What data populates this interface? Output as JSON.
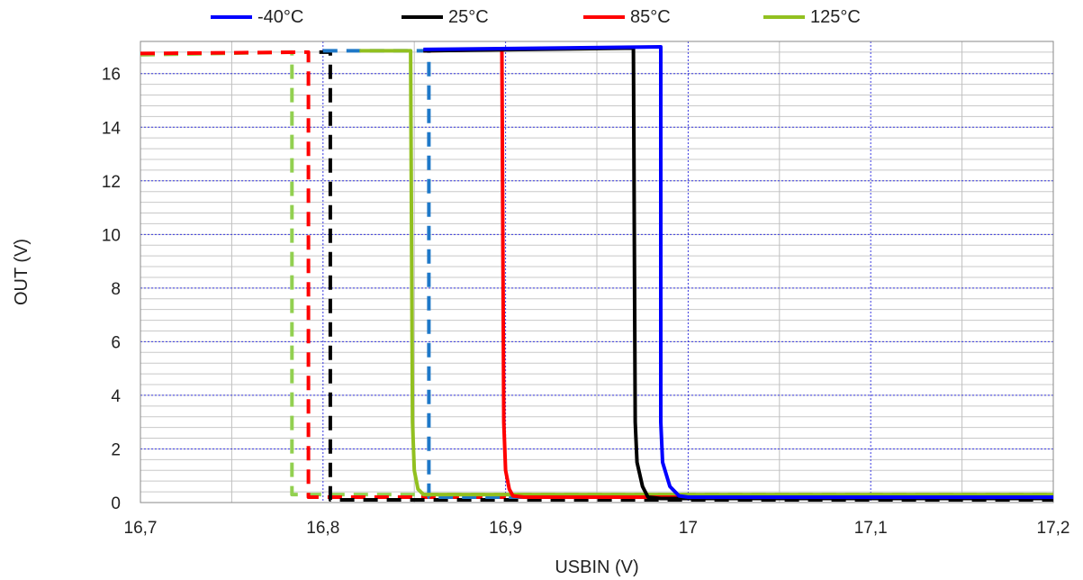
{
  "chart_data": {
    "type": "line",
    "title": "",
    "xlabel": "USBIN (V)",
    "ylabel": "OUT (V)",
    "xlim": [
      16.7,
      17.2
    ],
    "ylim": [
      0,
      17.2
    ],
    "x_ticks": [
      "16,7",
      "16,8",
      "16,9",
      "17",
      "17,1",
      "17,2"
    ],
    "x_tick_values": [
      16.7,
      16.8,
      16.9,
      17.0,
      17.1,
      17.2
    ],
    "y_ticks": [
      "0",
      "2",
      "4",
      "6",
      "8",
      "10",
      "12",
      "14",
      "16"
    ],
    "y_tick_values": [
      0,
      2,
      4,
      6,
      8,
      10,
      12,
      14,
      16
    ],
    "grid": true,
    "legend_position": "top",
    "series": [
      {
        "name": "-40°C",
        "color": "#0000ff",
        "style": "solid",
        "x": [
          16.855,
          16.985,
          16.985,
          16.986,
          16.99,
          16.995,
          17.0,
          17.2
        ],
        "y": [
          16.9,
          17.0,
          3.0,
          1.5,
          0.6,
          0.25,
          0.2,
          0.2
        ]
      },
      {
        "name": "25°C",
        "color": "#000000",
        "style": "solid",
        "x": [
          16.855,
          16.97,
          16.971,
          16.972,
          16.975,
          16.978,
          16.985,
          17.2
        ],
        "y": [
          16.85,
          16.95,
          3.0,
          1.5,
          0.6,
          0.2,
          0.15,
          0.15
        ]
      },
      {
        "name": "85°C",
        "color": "#ff0000",
        "style": "solid",
        "x": [
          16.855,
          16.898,
          16.899,
          16.9,
          16.902,
          16.904,
          16.91,
          17.2
        ],
        "y": [
          16.85,
          16.9,
          3.0,
          1.2,
          0.5,
          0.25,
          0.2,
          0.2
        ]
      },
      {
        "name": "125°C",
        "color": "#92c020",
        "style": "solid",
        "x": [
          16.82,
          16.848,
          16.849,
          16.85,
          16.852,
          16.855,
          16.86,
          17.2
        ],
        "y": [
          16.85,
          16.85,
          3.0,
          1.2,
          0.5,
          0.3,
          0.3,
          0.3
        ]
      },
      {
        "name": "",
        "color": "#1e78c8",
        "style": "dashed",
        "x": [
          16.8,
          16.858,
          16.858,
          16.87,
          17.2
        ],
        "y": [
          16.85,
          16.85,
          0.2,
          0.2,
          0.2
        ]
      },
      {
        "name": "",
        "color": "#000000",
        "style": "dashed",
        "x": [
          16.798,
          16.804,
          16.804,
          16.82,
          17.2
        ],
        "y": [
          16.8,
          16.8,
          0.1,
          0.1,
          0.1
        ]
      },
      {
        "name": "",
        "color": "#ff0000",
        "style": "dashed",
        "x": [
          16.7,
          16.792,
          16.792,
          16.81,
          17.2
        ],
        "y": [
          16.75,
          16.8,
          0.2,
          0.2,
          0.2
        ]
      },
      {
        "name": "",
        "color": "#92d050",
        "style": "dashed",
        "x": [
          16.7,
          16.783,
          16.783,
          16.8,
          17.2
        ],
        "y": [
          16.7,
          16.8,
          0.3,
          0.3,
          0.3
        ]
      }
    ]
  }
}
